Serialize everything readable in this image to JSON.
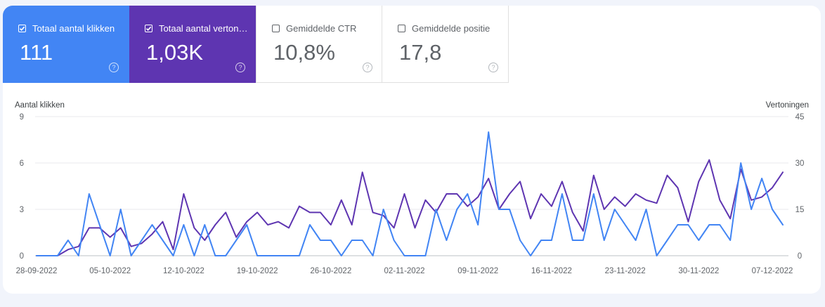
{
  "metrics": {
    "clicks": {
      "label": "Totaal aantal klikken",
      "value": "111",
      "checked": true,
      "color": "#4285f4"
    },
    "impressions": {
      "label": "Totaal aantal vertoningen",
      "value": "1,03K",
      "checked": true,
      "color": "#5e35b1"
    },
    "ctr": {
      "label": "Gemiddelde CTR",
      "value": "10,8%",
      "checked": false
    },
    "position": {
      "label": "Gemiddelde positie",
      "value": "17,8",
      "checked": false
    }
  },
  "help_glyph": "?",
  "chart_data": {
    "type": "line",
    "xlabel": "",
    "ylabel": "Aantal klikken",
    "ylabel_right": "Vertoningen",
    "ylim": [
      0,
      9
    ],
    "ylim_right": [
      0,
      45
    ],
    "yticks": [
      "0",
      "3",
      "6",
      "9"
    ],
    "yticks_right": [
      "0",
      "15",
      "30",
      "45"
    ],
    "grid": true,
    "xtick_labels": [
      "28-09-2022",
      "05-10-2022",
      "12-10-2022",
      "19-10-2022",
      "26-10-2022",
      "02-11-2022",
      "09-11-2022",
      "16-11-2022",
      "23-11-2022",
      "30-11-2022",
      "07-12-2022"
    ],
    "x_start": "28-09-2022",
    "x_end": "10-12-2022",
    "series": [
      {
        "name": "Totaal aantal klikken",
        "axis": "left",
        "color": "#4285f4",
        "values": [
          0,
          0,
          0,
          1,
          0,
          4,
          2,
          0,
          3,
          0,
          1,
          2,
          1,
          0,
          2,
          0,
          2,
          0,
          0,
          1,
          2,
          0,
          0,
          0,
          0,
          0,
          2,
          1,
          1,
          0,
          1,
          1,
          0,
          3,
          1,
          0,
          0,
          0,
          3,
          1,
          3,
          4,
          2,
          8,
          3,
          3,
          1,
          0,
          1,
          1,
          4,
          1,
          1,
          4,
          1,
          3,
          2,
          1,
          3,
          0,
          1,
          2,
          2,
          1,
          2,
          2,
          1,
          6,
          3,
          5,
          3,
          2
        ]
      },
      {
        "name": "Totaal aantal vertoningen",
        "axis": "right",
        "color": "#5e35b1",
        "values": [
          0,
          0,
          0,
          2,
          3,
          9,
          9,
          6,
          9,
          3,
          4,
          7,
          11,
          2,
          20,
          9,
          5,
          10,
          14,
          6,
          11,
          14,
          10,
          11,
          9,
          16,
          14,
          14,
          10,
          18,
          10,
          27,
          14,
          13,
          9,
          20,
          9,
          18,
          14,
          20,
          20,
          16,
          19,
          25,
          15,
          20,
          24,
          12,
          20,
          16,
          24,
          14,
          8,
          26,
          15,
          19,
          16,
          20,
          18,
          17,
          26,
          22,
          11,
          24,
          31,
          18,
          12,
          28,
          18,
          19,
          22,
          27
        ]
      }
    ]
  }
}
